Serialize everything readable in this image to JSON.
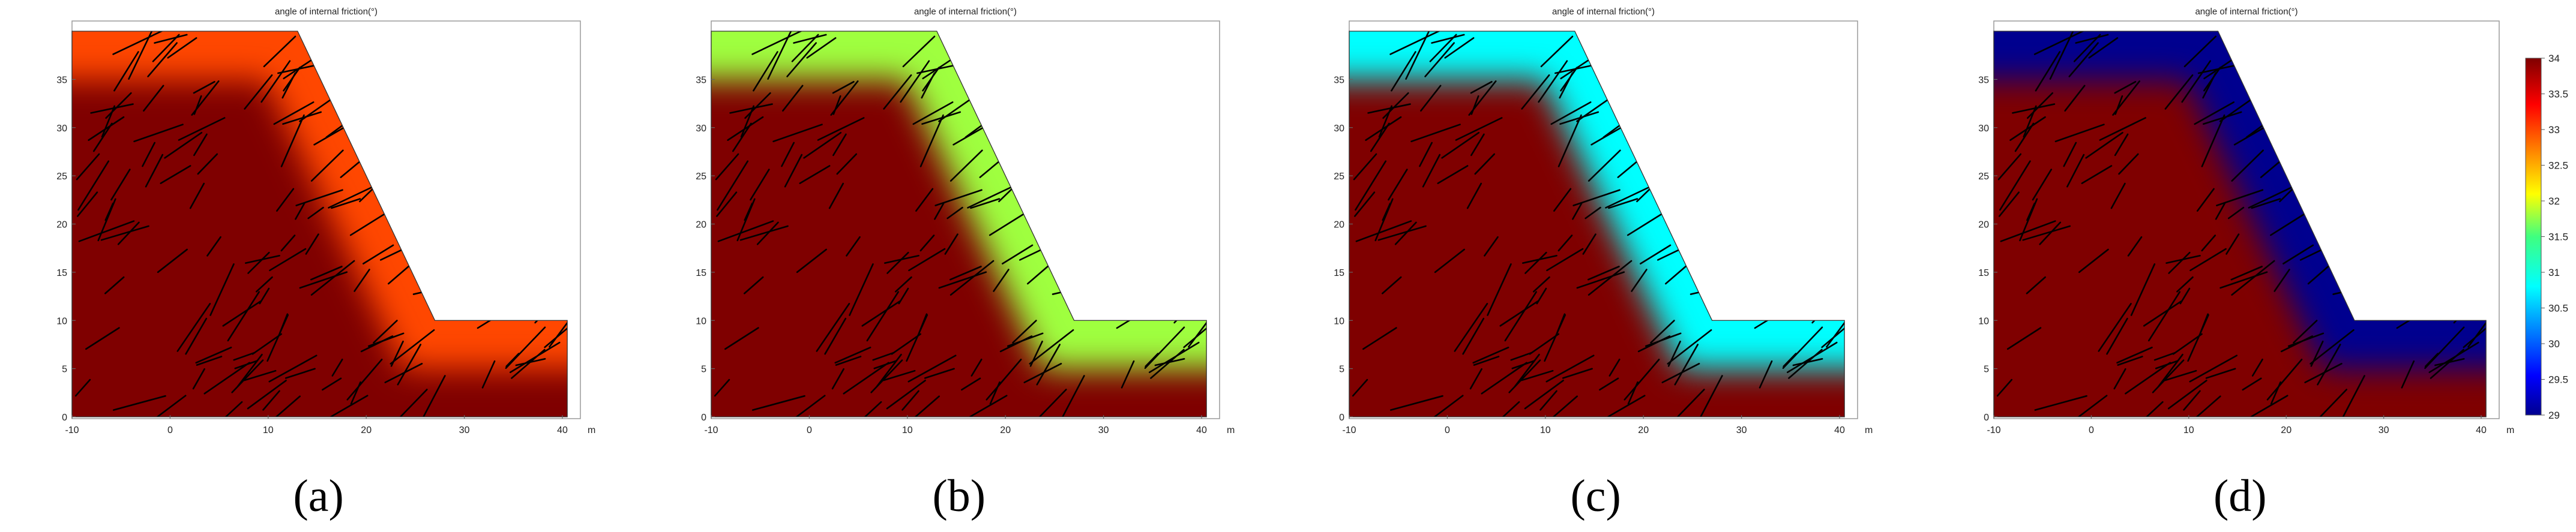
{
  "figure": {
    "colorbar": {
      "min": 29,
      "max": 34,
      "ticks": [
        "34",
        "33.5",
        "33",
        "32.5",
        "32",
        "31.5",
        "31",
        "30.5",
        "30",
        "29.5",
        "29"
      ]
    }
  },
  "chart_data": [
    {
      "type": "heatmap",
      "panel_label": "(a)",
      "title": "angle of internal friction(°)",
      "xlabel": "m",
      "xlim": [
        -10,
        40
      ],
      "ylim": [
        0,
        40
      ],
      "xticks": [
        "-10",
        "0",
        "10",
        "20",
        "30",
        "40"
      ],
      "yticks": [
        "0",
        "5",
        "10",
        "15",
        "20",
        "25",
        "30",
        "35"
      ],
      "interior_value": 34,
      "surface_value": 33,
      "transition_depth_m": 5,
      "geometry": [
        [
          -10,
          0
        ],
        [
          40.5,
          0
        ],
        [
          40.5,
          10
        ],
        [
          27,
          10
        ],
        [
          13,
          40
        ],
        [
          -10,
          40
        ]
      ]
    },
    {
      "type": "heatmap",
      "panel_label": "(b)",
      "title": "angle of internal friction(°)",
      "xlabel": "m",
      "xlim": [
        -10,
        40
      ],
      "ylim": [
        0,
        40
      ],
      "xticks": [
        "-10",
        "0",
        "10",
        "20",
        "30",
        "40"
      ],
      "yticks": [
        "0",
        "5",
        "10",
        "15",
        "20",
        "25",
        "30",
        "35"
      ],
      "interior_value": 34,
      "surface_value": 31.8,
      "transition_depth_m": 5,
      "geometry": [
        [
          -10,
          0
        ],
        [
          40.5,
          0
        ],
        [
          40.5,
          10
        ],
        [
          27,
          10
        ],
        [
          13,
          40
        ],
        [
          -10,
          40
        ]
      ]
    },
    {
      "type": "heatmap",
      "panel_label": "(c)",
      "title": "angle of internal friction(°)",
      "xlabel": "m",
      "xlim": [
        -10,
        40
      ],
      "ylim": [
        0,
        40
      ],
      "xticks": [
        "-10",
        "0",
        "10",
        "20",
        "30",
        "40"
      ],
      "yticks": [
        "0",
        "5",
        "10",
        "15",
        "20",
        "25",
        "30",
        "35"
      ],
      "interior_value": 34,
      "surface_value": 30.8,
      "transition_depth_m": 5,
      "geometry": [
        [
          -10,
          0
        ],
        [
          40.5,
          0
        ],
        [
          40.5,
          10
        ],
        [
          27,
          10
        ],
        [
          13,
          40
        ],
        [
          -10,
          40
        ]
      ]
    },
    {
      "type": "heatmap",
      "panel_label": "(d)",
      "title": "angle of internal friction(°)",
      "xlabel": "m",
      "xlim": [
        -10,
        40
      ],
      "ylim": [
        0,
        40
      ],
      "xticks": [
        "-10",
        "0",
        "10",
        "20",
        "30",
        "40"
      ],
      "yticks": [
        "0",
        "5",
        "10",
        "15",
        "20",
        "25",
        "30",
        "35"
      ],
      "interior_value": 34,
      "surface_value": 29,
      "transition_depth_m": 5,
      "geometry": [
        [
          -10,
          0
        ],
        [
          40.5,
          0
        ],
        [
          40.5,
          10
        ],
        [
          27,
          10
        ],
        [
          13,
          40
        ],
        [
          -10,
          40
        ]
      ]
    }
  ]
}
